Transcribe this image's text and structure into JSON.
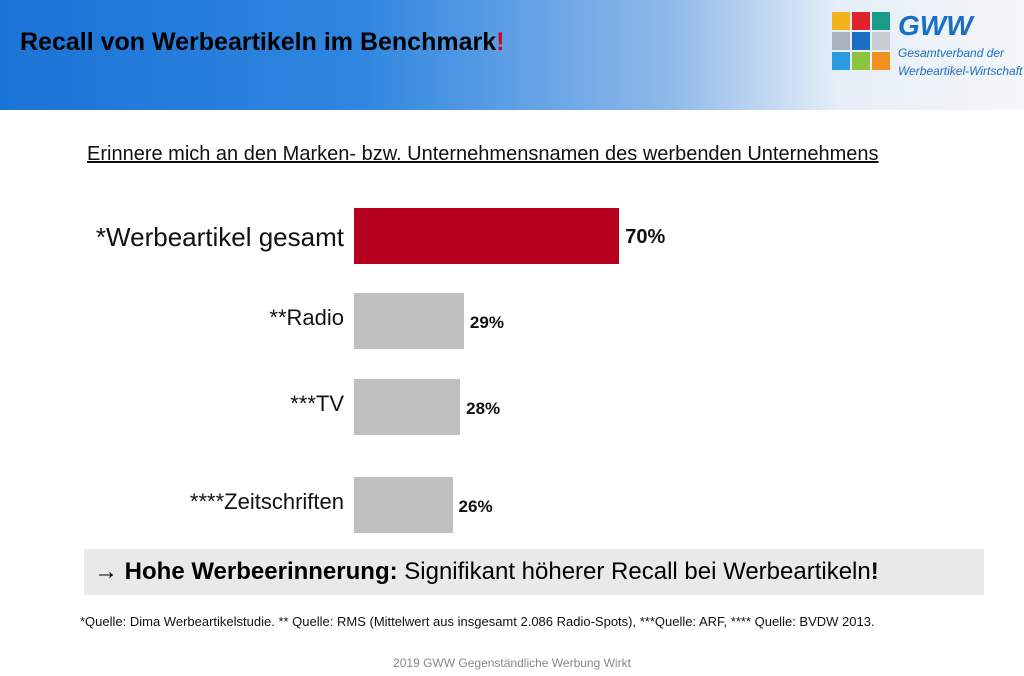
{
  "header": {
    "title": "Recall von Werbeartikeln im Benchmark",
    "title_mark": "!"
  },
  "logo": {
    "name": "GWW",
    "line1": "Gesamtverband der",
    "line2": "Werbeartikel-Wirtschaft"
  },
  "chart_data": {
    "type": "bar",
    "orientation": "horizontal",
    "title": "Erinnere mich an den Marken- bzw. Unternehmensnamen des werbenden Unternehmens",
    "categories": [
      "*Werbeartikel gesamt",
      "**Radio",
      "***TV",
      "****Zeitschriften"
    ],
    "values": [
      70,
      29,
      28,
      26
    ],
    "labels": [
      "70%",
      "29%",
      "28%",
      "26%"
    ],
    "colors": [
      "#b5001f",
      "#c0c0c0",
      "#c0c0c0",
      "#c0c0c0"
    ],
    "xlim": [
      0,
      100
    ],
    "grid": false
  },
  "conclusion": {
    "arrow": "→",
    "bold": "Hohe Werbeerinnerung:",
    "text": " Signifikant höherer Recall bei Werbeartikeln",
    "mark": "!"
  },
  "source": "*Quelle: Dima Werbeartikelstudie. ** Quelle: RMS (Mittelwert aus insgesamt 2.086 Radio-Spots), ***Quelle: ARF, **** Quelle: BVDW 2013.",
  "footer": "2019 GWW Gegenständliche Werbung Wirkt"
}
